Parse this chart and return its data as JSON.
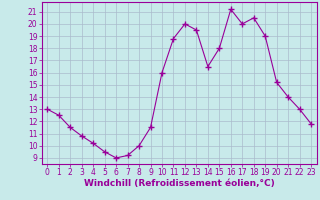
{
  "x": [
    0,
    1,
    2,
    3,
    4,
    5,
    6,
    7,
    8,
    9,
    10,
    11,
    12,
    13,
    14,
    15,
    16,
    17,
    18,
    19,
    20,
    21,
    22,
    23
  ],
  "y": [
    13,
    12.5,
    11.5,
    10.8,
    10.2,
    9.5,
    9.0,
    9.2,
    10.0,
    11.5,
    16.0,
    18.8,
    20.0,
    19.5,
    16.5,
    18.0,
    21.2,
    20.0,
    20.5,
    19.0,
    15.2,
    14.0,
    13.0,
    11.8
  ],
  "line_color": "#990099",
  "marker": "+",
  "marker_size": 4,
  "bg_color": "#c8eaea",
  "grid_color": "#aabccc",
  "xlabel": "Windchill (Refroidissement éolien,°C)",
  "xlabel_color": "#990099",
  "ylabel_ticks": [
    9,
    10,
    11,
    12,
    13,
    14,
    15,
    16,
    17,
    18,
    19,
    20,
    21
  ],
  "xlim": [
    -0.5,
    23.5
  ],
  "ylim": [
    8.5,
    21.8
  ],
  "xticks": [
    0,
    1,
    2,
    3,
    4,
    5,
    6,
    7,
    8,
    9,
    10,
    11,
    12,
    13,
    14,
    15,
    16,
    17,
    18,
    19,
    20,
    21,
    22,
    23
  ],
  "tick_color": "#990099",
  "tick_label_fontsize": 5.5,
  "xlabel_fontsize": 6.5
}
